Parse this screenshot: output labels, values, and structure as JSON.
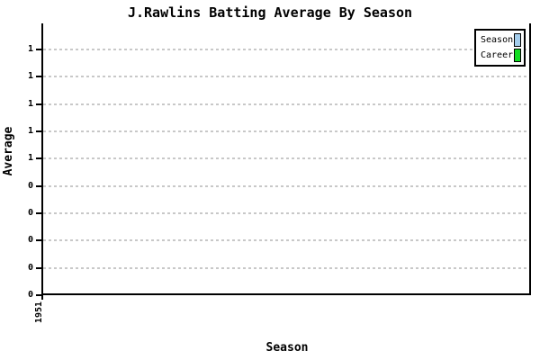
{
  "chart": {
    "title": "J.Rawlins Batting Average By Season",
    "y_axis_label": "Average",
    "x_axis_label": "Season",
    "x_tick_label": "1951",
    "y_tick_labels_top_to_bottom": [
      "1",
      "1",
      "1",
      "1",
      "1",
      "0",
      "0",
      "0",
      "0",
      "0"
    ],
    "legend": {
      "items": [
        {
          "label": "Season",
          "color": "#a5ceed"
        },
        {
          "label": "Career",
          "color": "#11dd22"
        }
      ]
    },
    "colors": {
      "background": "#ffffff",
      "axis": "#000000",
      "gridline": "#c8c8c8",
      "text": "#000000"
    }
  },
  "chart_data": {
    "type": "line",
    "title": "J.Rawlins Batting Average By Season",
    "xlabel": "Season",
    "ylabel": "Average",
    "categories": [
      "1951"
    ],
    "series": [
      {
        "name": "Season",
        "color": "#a5ceed",
        "values": []
      },
      {
        "name": "Career",
        "color": "#11dd22",
        "values": []
      }
    ],
    "y_tick_labels_top_to_bottom": [
      "1",
      "1",
      "1",
      "1",
      "1",
      "0",
      "0",
      "0",
      "0",
      "0"
    ],
    "grid": "horizontal dashed gridlines at each y tick",
    "legend_position": "top-right",
    "plot_empty": true
  }
}
